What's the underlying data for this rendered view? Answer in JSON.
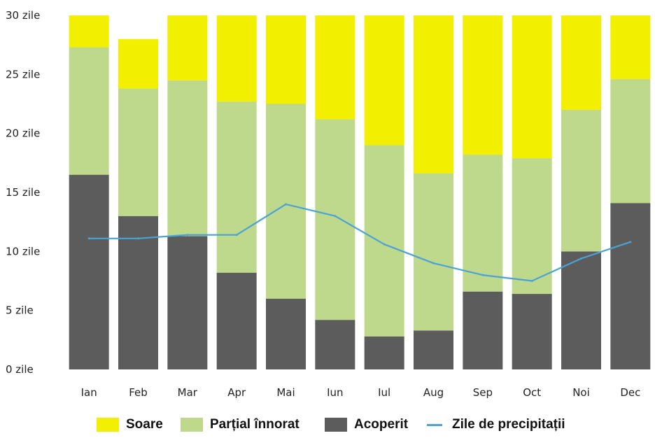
{
  "chart_data": {
    "type": "bar",
    "stacked": true,
    "categories": [
      "Ian",
      "Feb",
      "Mar",
      "Apr",
      "Mai",
      "Iun",
      "Iul",
      "Aug",
      "Sep",
      "Oct",
      "Noi",
      "Dec"
    ],
    "series": [
      {
        "name": "Acoperit",
        "kind": "bar",
        "color": "#5c5c5c",
        "values": [
          16.5,
          13.0,
          11.3,
          8.2,
          6.0,
          4.2,
          2.8,
          3.3,
          6.6,
          6.4,
          10.0,
          14.1
        ]
      },
      {
        "name": "Parțial înnorat",
        "kind": "bar",
        "color": "#bfd98c",
        "values": [
          10.8,
          10.8,
          13.2,
          14.5,
          16.5,
          17.0,
          16.2,
          13.3,
          11.6,
          11.5,
          12.0,
          10.5
        ]
      },
      {
        "name": "Soare",
        "kind": "bar",
        "color": "#f2ef00",
        "values": [
          2.7,
          4.2,
          5.5,
          7.3,
          7.5,
          8.8,
          11.0,
          13.4,
          11.8,
          12.1,
          8.0,
          5.4
        ]
      },
      {
        "name": "Zile de precipitații",
        "kind": "line",
        "color": "#4aa3d6",
        "values": [
          11.1,
          11.1,
          11.4,
          11.4,
          14.0,
          13.0,
          10.6,
          9.0,
          8.0,
          7.5,
          9.4,
          10.8
        ]
      }
    ],
    "yticks": [
      "0 zile",
      "5 zile",
      "10 zile",
      "15 zile",
      "20 zile",
      "25 zile",
      "30 zile"
    ],
    "ylim": [
      0,
      30
    ],
    "legend": "bottom",
    "grid": false
  }
}
